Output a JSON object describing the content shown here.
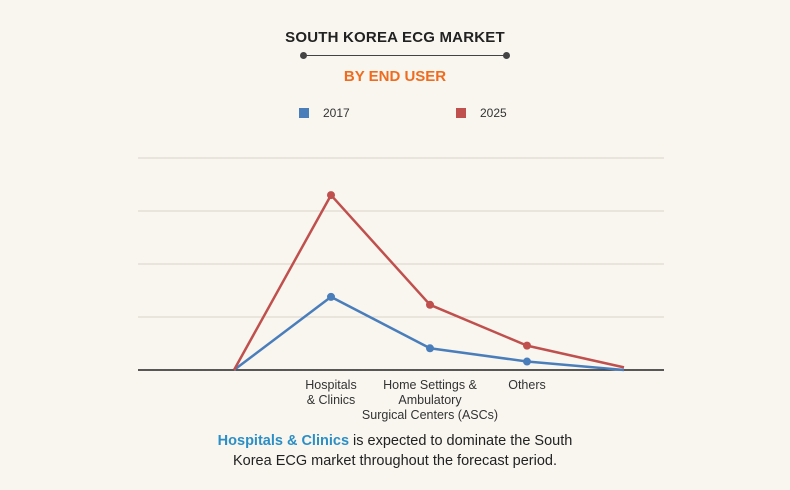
{
  "header": {
    "title": "SOUTH KOREA ECG MARKET",
    "subtitle": "BY END USER"
  },
  "caption": {
    "highlight": "Hospitals & Clinics",
    "line1_rest": " is expected to dominate the South",
    "line2": "Korea ECG market throughout the forecast period."
  },
  "colors": {
    "series_2017": "#4a7ebb",
    "series_2025": "#c0504d",
    "subtitle": "#ef6c1e",
    "highlight": "#2b8fc6"
  },
  "chart_data": {
    "type": "line",
    "title": "SOUTH KOREA ECG MARKET",
    "subtitle": "BY END USER",
    "categories": [
      "",
      "Hospitals & Clinics",
      "Home Settings & Ambulatory Surgical Centers (ASCs)",
      "Others",
      ""
    ],
    "category_label_lines": [
      [],
      [
        "Hospitals",
        "& Clinics"
      ],
      [
        "Home Settings &",
        "Ambulatory",
        "Surgical Centers (ASCs)"
      ],
      [
        "Others"
      ],
      []
    ],
    "series": [
      {
        "name": "2017",
        "values": [
          0,
          1.38,
          0.41,
          0.16,
          0
        ],
        "markers": [
          false,
          true,
          true,
          true,
          false
        ]
      },
      {
        "name": "2025",
        "values": [
          0,
          3.3,
          1.23,
          0.46,
          0.05
        ],
        "markers": [
          false,
          true,
          true,
          true,
          false
        ]
      }
    ],
    "ylim": [
      0,
      4
    ],
    "y_gridlines": 4,
    "y_tick_labels": false,
    "grid": true,
    "legend_position": "top-center"
  }
}
